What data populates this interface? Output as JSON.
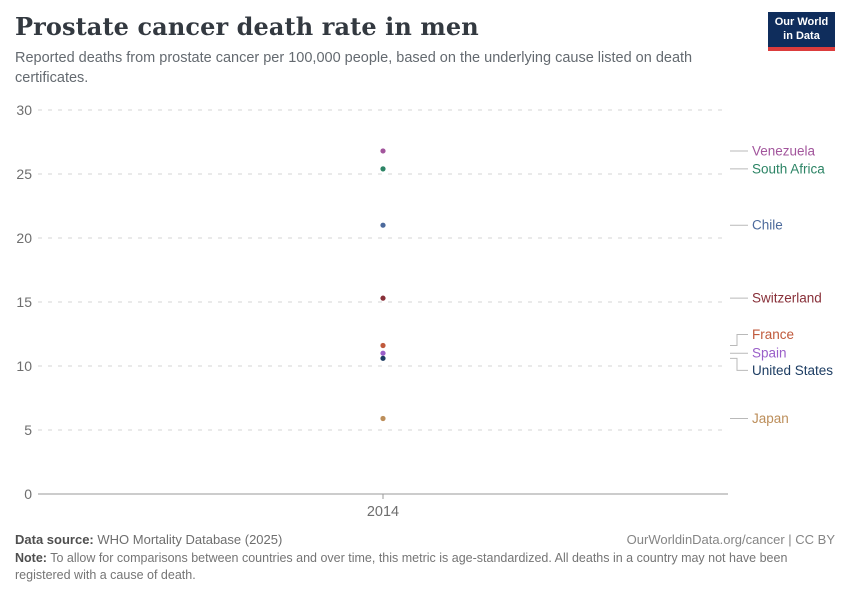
{
  "header": {
    "title": "Prostate cancer death rate in men",
    "subtitle": "Reported deaths from prostate cancer per 100,000 people, based on the underlying cause listed on death certificates.",
    "logo_line1": "Our World",
    "logo_line2": "in Data",
    "logo_bg": "#0f2d5c",
    "logo_accent": "#dc3c3c"
  },
  "chart_data": {
    "type": "scatter",
    "title": "Prostate cancer death rate in men",
    "x": [
      2014
    ],
    "xtick_label": "2014",
    "xlabel": "",
    "ylabel": "",
    "ylim": [
      0,
      30
    ],
    "yticks": [
      0,
      5,
      10,
      15,
      20,
      25,
      30
    ],
    "grid": "dashed-horizontal",
    "legend_position": "right-labels",
    "series": [
      {
        "name": "Venezuela",
        "year": 2014,
        "value": 26.8,
        "color": "#a2559c",
        "connector": "straight"
      },
      {
        "name": "South Africa",
        "year": 2014,
        "value": 25.4,
        "color": "#2c8465",
        "connector": "straight"
      },
      {
        "name": "Chile",
        "year": 2014,
        "value": 21.0,
        "color": "#4c6a9c",
        "connector": "straight"
      },
      {
        "name": "Switzerland",
        "year": 2014,
        "value": 15.3,
        "color": "#883039",
        "connector": "straight"
      },
      {
        "name": "France",
        "year": 2014,
        "value": 11.6,
        "color": "#c05a3c",
        "connector": "elbow-up"
      },
      {
        "name": "Spain",
        "year": 2014,
        "value": 11.0,
        "color": "#9a5fc9",
        "connector": "straight"
      },
      {
        "name": "United States",
        "year": 2014,
        "value": 10.6,
        "color": "#1d3d63",
        "connector": "elbow-down"
      },
      {
        "name": "Japan",
        "year": 2014,
        "value": 5.9,
        "color": "#bc8e5a",
        "connector": "straight"
      }
    ]
  },
  "footer": {
    "datasource_label": "Data source:",
    "datasource_text": "WHO Mortality Database (2025)",
    "link_text": "OurWorldinData.org/cancer | CC BY",
    "note_label": "Note:",
    "note_text": "To allow for comparisons between countries and over time, this metric is age-standardized. All deaths in a country may not have been registered with a cause of death."
  }
}
